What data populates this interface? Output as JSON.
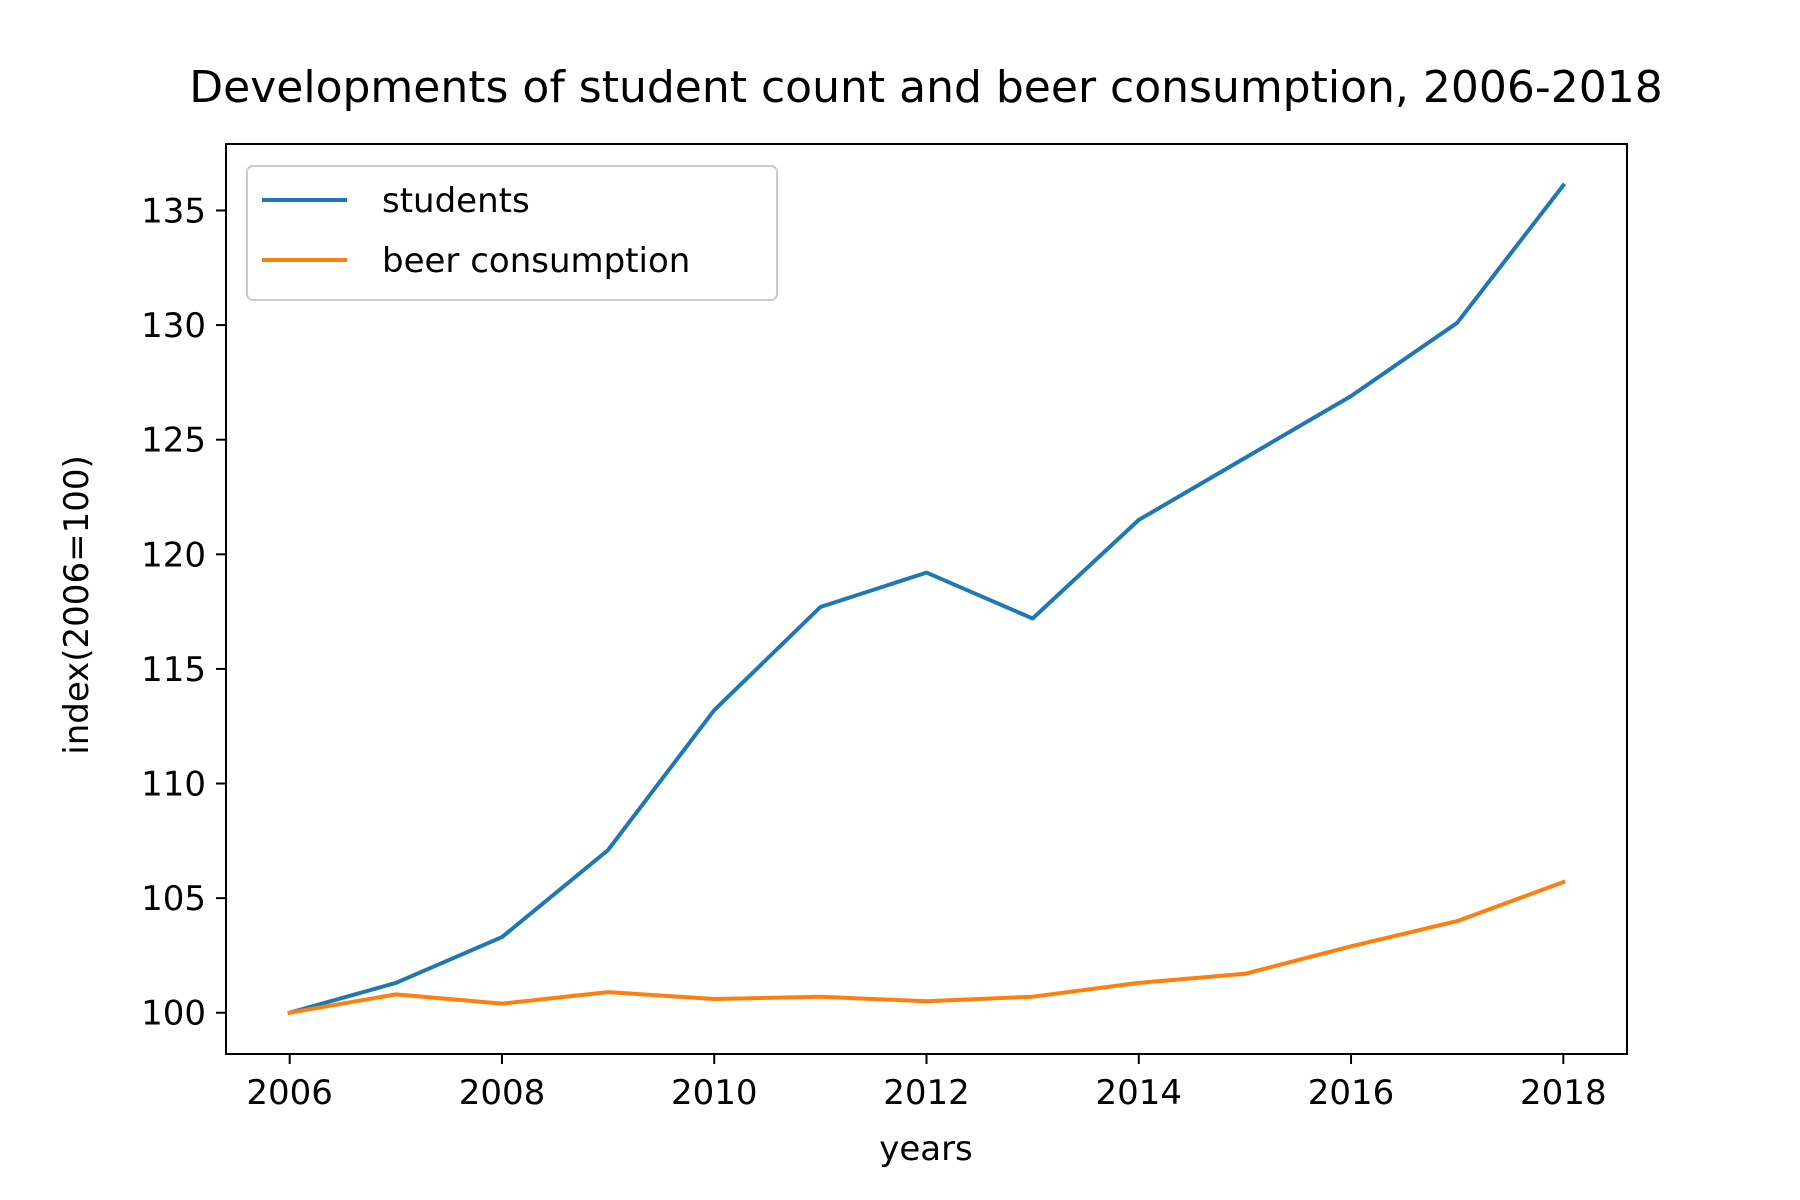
{
  "chart_data": {
    "type": "line",
    "title": "Developments of student count and beer consumption, 2006-2018",
    "xlabel": "years",
    "ylabel": "index(2006=100)",
    "x": [
      2006,
      2007,
      2008,
      2009,
      2010,
      2011,
      2012,
      2013,
      2014,
      2015,
      2016,
      2017,
      2018
    ],
    "xlim": [
      2005.4,
      2018.6
    ],
    "ylim": [
      98.2,
      137.9
    ],
    "x_ticks": [
      2006,
      2008,
      2010,
      2012,
      2014,
      2016,
      2018
    ],
    "y_ticks": [
      100,
      105,
      110,
      115,
      120,
      125,
      130,
      135
    ],
    "grid": false,
    "legend": "top-left",
    "series": [
      {
        "name": "students",
        "color": "#1f77b4",
        "values": [
          100.0,
          101.3,
          103.3,
          107.1,
          113.2,
          117.7,
          119.2,
          117.2,
          121.5,
          124.2,
          126.9,
          130.1,
          136.1
        ]
      },
      {
        "name": "beer consumption",
        "color": "#ff7f0e",
        "values": [
          100.0,
          100.8,
          100.4,
          100.9,
          100.6,
          100.7,
          100.5,
          100.7,
          101.3,
          101.7,
          102.9,
          104.0,
          105.7
        ]
      }
    ]
  }
}
